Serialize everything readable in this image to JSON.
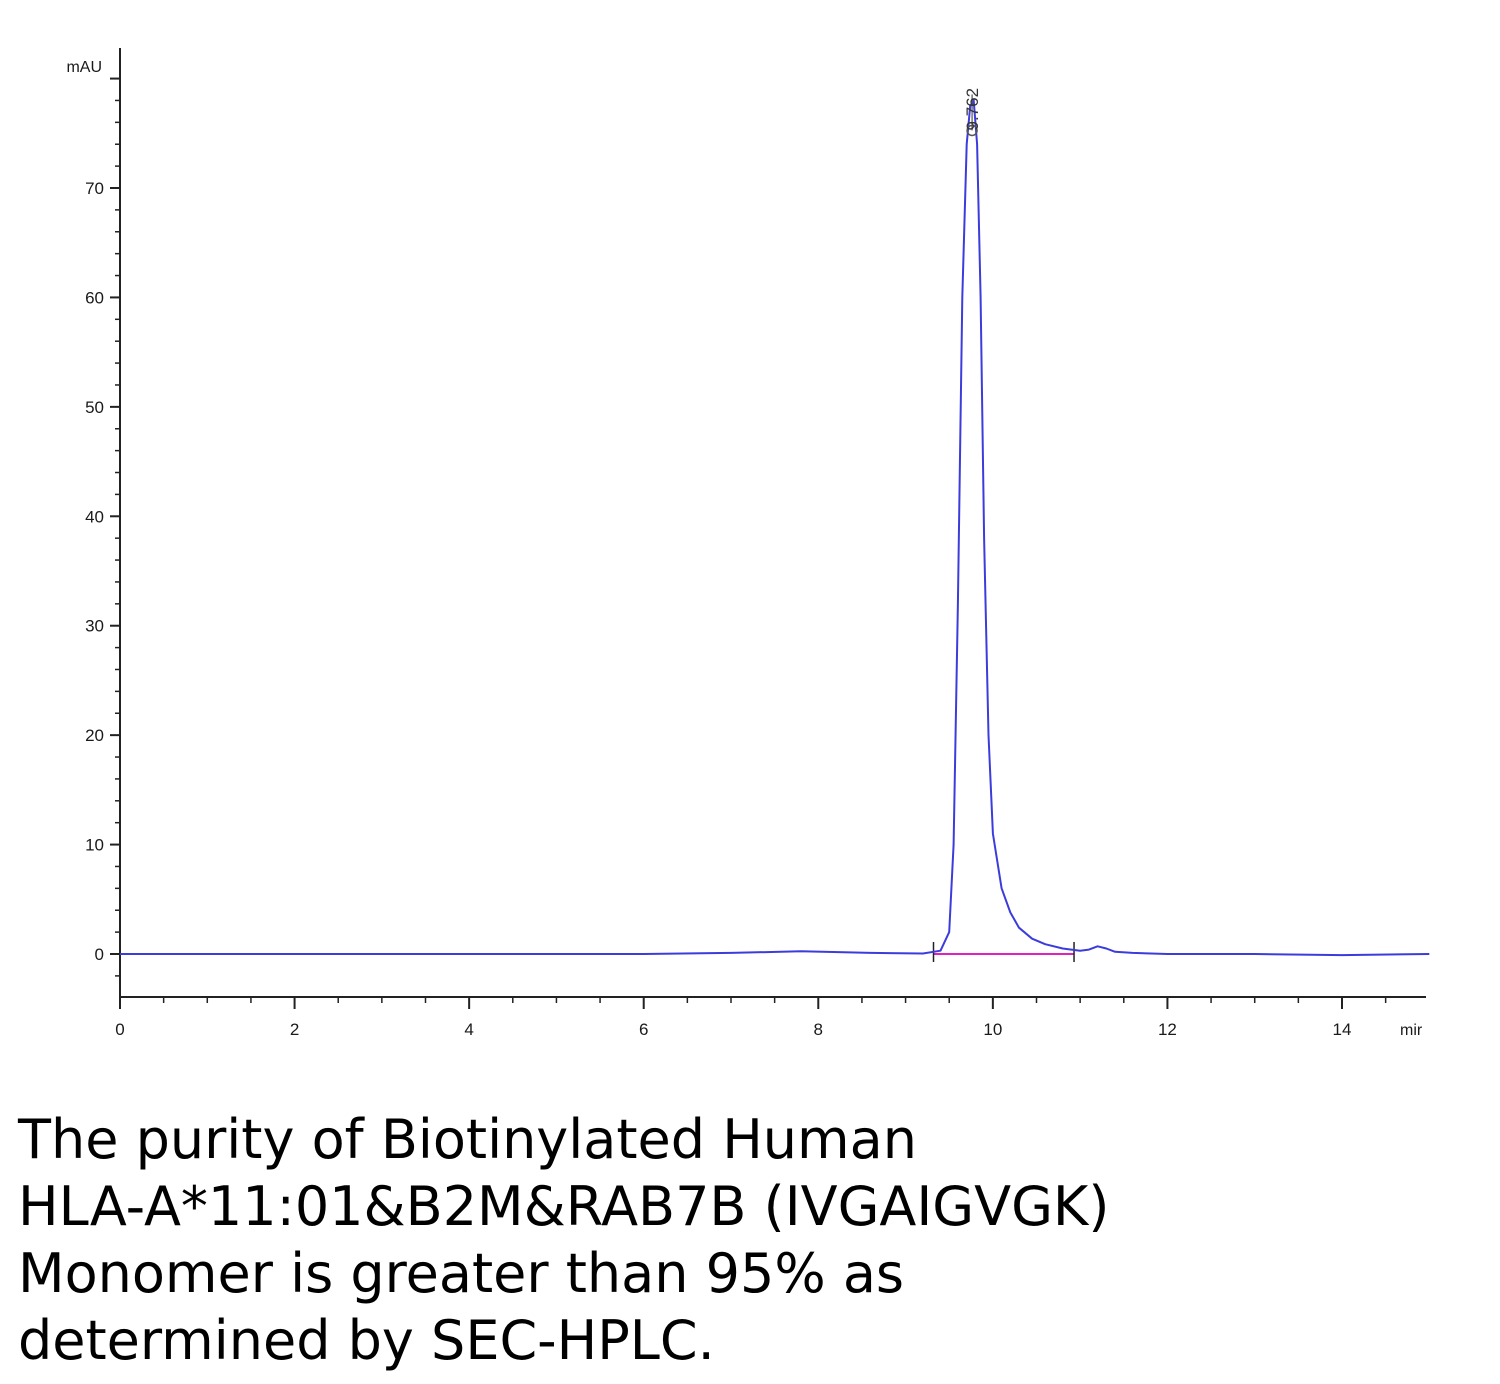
{
  "chart_data": {
    "type": "line",
    "ylabel_unit": "mAU",
    "xlabel_unit": "mir",
    "xlim": [
      0,
      15
    ],
    "ylim": [
      -4,
      82
    ],
    "x_ticks": [
      0,
      2,
      4,
      6,
      8,
      10,
      12,
      14
    ],
    "y_ticks": [
      0,
      10,
      20,
      30,
      40,
      50,
      60,
      70
    ],
    "grid": false,
    "series": [
      {
        "color": "#3c3cdc",
        "x": [
          0,
          2,
          4,
          6,
          7,
          7.8,
          8.6,
          9.2,
          9.4,
          9.5,
          9.55,
          9.6,
          9.65,
          9.7,
          9.74,
          9.78,
          9.82,
          9.86,
          9.9,
          9.95,
          10.0,
          10.1,
          10.2,
          10.3,
          10.45,
          10.6,
          10.8,
          11.0,
          11.1,
          11.2,
          11.3,
          11.4,
          11.6,
          12,
          13,
          14,
          15
        ],
        "y": [
          0,
          0,
          0,
          0,
          0.1,
          0.25,
          0.1,
          0.05,
          0.3,
          2,
          10,
          32,
          60,
          74,
          77.5,
          78,
          74,
          60,
          38,
          20,
          11,
          6,
          3.8,
          2.4,
          1.4,
          0.9,
          0.5,
          0.3,
          0.4,
          0.7,
          0.5,
          0.2,
          0.1,
          0,
          0,
          -0.1,
          0
        ]
      }
    ],
    "baseline": {
      "color": "#e020c0",
      "x": [
        9.32,
        10.93
      ],
      "y": [
        0,
        0
      ]
    },
    "peak_marks": [
      9.32,
      10.93
    ],
    "annotations": [
      {
        "text": "9.762",
        "x": 9.762,
        "y": 78
      }
    ]
  },
  "caption": {
    "line1": "The purity of Biotinylated Human",
    "line2": "HLA-A*11:01&B2M&RAB7B (IVGAIGVGK)",
    "line3": "Monomer is greater than 95% as",
    "line4": "determined by SEC-HPLC."
  }
}
